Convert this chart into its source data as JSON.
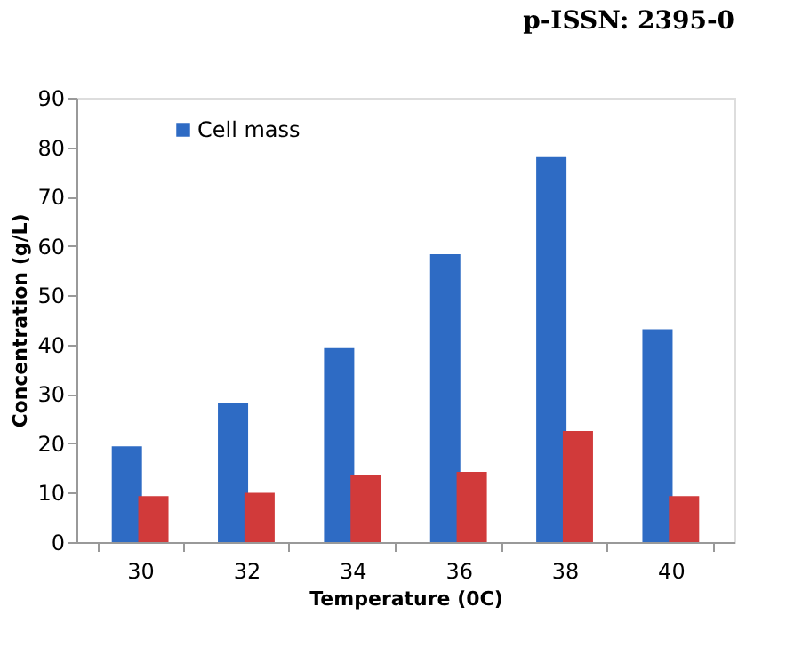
{
  "chart_data": {
    "type": "bar",
    "xlabel": "Temperature  (0C)",
    "ylabel": "Concentration (g/L)",
    "categories": [
      "30",
      "32",
      "34",
      "36",
      "38",
      "40"
    ],
    "series": [
      {
        "name": "Cell mass",
        "color": "#2e6bc4",
        "values": [
          19.4,
          28.2,
          39.3,
          58.3,
          78,
          43.1
        ]
      },
      {
        "color": "#d13a3a",
        "values": [
          9.3,
          10,
          13.5,
          14.2,
          22.5,
          9.3
        ]
      }
    ],
    "ylim": [
      0,
      90
    ],
    "yticks": [
      0,
      10,
      20,
      30,
      40,
      50,
      60,
      70,
      80,
      90
    ],
    "grid": false,
    "legend": "top left",
    "annotations": [
      "p-ISSN: 2395-0"
    ]
  }
}
